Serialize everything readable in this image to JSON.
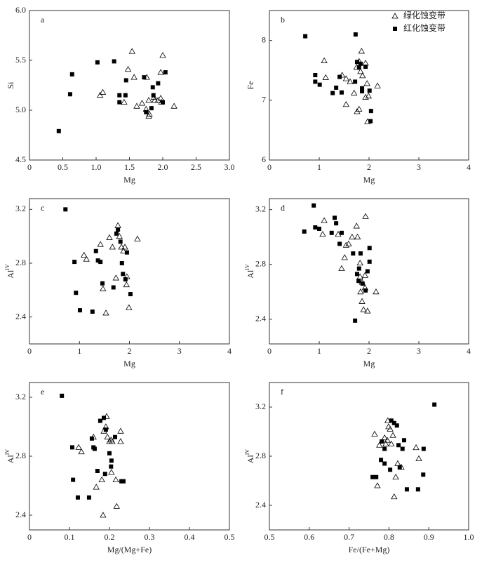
{
  "chart_data": [
    {
      "type": "scatter",
      "panel_label": "a",
      "xlabel": "Mg",
      "ylabel": "Si",
      "xlim": [
        0,
        3
      ],
      "ylim": [
        4.5,
        6.0
      ],
      "xticks": [
        0,
        0.5,
        {
          "value": 1,
          "label": "1.0"
        },
        1.5,
        {
          "value": 2,
          "label": "2.0"
        },
        2.5,
        {
          "value": 3,
          "label": "3.0"
        }
      ],
      "yticks": [
        4.5,
        {
          "value": 5,
          "label": "5.0"
        },
        5.5,
        {
          "value": 6,
          "label": "6.0"
        }
      ],
      "series": [
        {
          "marker": "triangle",
          "color": "#000000",
          "x": [
            1.54,
            2.0,
            1.48,
            1.97,
            1.1,
            1.06,
            1.57,
            1.76,
            1.42,
            1.61,
            1.69,
            1.75,
            1.8,
            1.79,
            1.87,
            1.93,
            1.88,
            1.97,
            2.17,
            1.98,
            1.79
          ],
          "values": [
            5.59,
            5.55,
            5.41,
            5.38,
            5.18,
            5.15,
            5.33,
            5.33,
            5.08,
            5.04,
            5.07,
            5.01,
            4.96,
            4.94,
            5.13,
            5.1,
            5.1,
            5.12,
            5.04,
            5.08,
            5.1
          ]
        },
        {
          "marker": "square",
          "color": "#000000",
          "x": [
            0.44,
            0.64,
            1.02,
            1.27,
            0.61,
            1.35,
            1.44,
            1.45,
            1.35,
            1.72,
            1.75,
            1.85,
            1.83,
            1.93,
            2.04,
            2.0,
            1.86
          ],
          "values": [
            4.79,
            5.36,
            5.48,
            5.49,
            5.16,
            5.15,
            5.15,
            5.3,
            5.08,
            5.33,
            4.98,
            5.23,
            5.02,
            5.27,
            5.38,
            5.08,
            5.15
          ]
        }
      ]
    },
    {
      "type": "scatter",
      "panel_label": "b",
      "xlabel": "Mg",
      "ylabel": "Fe",
      "xlim": [
        0,
        4
      ],
      "ylim": [
        6,
        8.5
      ],
      "xticks": [
        0,
        1,
        2,
        3,
        4
      ],
      "yticks": [
        6,
        7,
        8
      ],
      "legend": "upper right",
      "series": [
        {
          "name": "绿化蚀变带",
          "marker": "triangle",
          "color": "#000000",
          "x": [
            1.1,
            1.13,
            1.46,
            1.54,
            1.62,
            1.54,
            1.7,
            1.75,
            1.76,
            1.8,
            1.85,
            1.83,
            1.87,
            1.93,
            1.96,
            1.99,
            1.93,
            1.97,
            2.17,
            1.8
          ],
          "values": [
            7.66,
            7.38,
            7.42,
            7.36,
            7.31,
            6.93,
            7.12,
            7.55,
            6.81,
            6.85,
            7.82,
            7.48,
            7.41,
            7.62,
            7.28,
            7.07,
            7.05,
            6.64,
            7.24,
            7.65
          ]
        },
        {
          "name": "红化蚀变带",
          "marker": "square",
          "color": "#000000",
          "x": [
            0.72,
            1.73,
            0.92,
            0.92,
            1.01,
            1.27,
            1.34,
            1.41,
            1.45,
            1.72,
            1.76,
            1.83,
            1.86,
            1.86,
            1.93,
            2.01,
            2.04,
            2.03,
            1.8
          ],
          "values": [
            8.07,
            8.1,
            7.42,
            7.31,
            7.26,
            7.12,
            7.21,
            7.39,
            7.13,
            7.31,
            7.64,
            7.61,
            7.2,
            7.15,
            7.56,
            7.16,
            6.82,
            6.65,
            7.55
          ]
        }
      ]
    },
    {
      "type": "scatter",
      "panel_label": "c",
      "xlabel": "Mg",
      "ylabel": "Al",
      "ylabel_superscript": "IV",
      "xlim": [
        0,
        4
      ],
      "ylim": [
        2.2,
        3.28
      ],
      "xticks": [
        0,
        1,
        2,
        3,
        4
      ],
      "yticks": [
        2.4,
        2.8,
        3.2
      ],
      "series": [
        {
          "marker": "triangle",
          "color": "#000000",
          "x": [
            1.09,
            1.14,
            1.42,
            1.47,
            1.53,
            1.6,
            1.66,
            1.73,
            1.77,
            1.8,
            1.84,
            1.88,
            1.91,
            1.94,
            1.99,
            2.16,
            1.95
          ],
          "values": [
            2.86,
            2.83,
            2.94,
            2.61,
            2.43,
            2.99,
            2.92,
            2.69,
            3.08,
            3.0,
            2.92,
            2.89,
            2.92,
            2.64,
            2.47,
            2.98,
            2.7
          ]
        },
        {
          "marker": "square",
          "color": "#000000",
          "x": [
            0.72,
            0.9,
            0.93,
            1.01,
            1.26,
            1.33,
            1.37,
            1.42,
            1.46,
            1.68,
            1.74,
            1.77,
            1.82,
            1.87,
            1.85,
            1.92,
            1.95,
            2.02
          ],
          "values": [
            3.2,
            2.81,
            2.58,
            2.45,
            2.44,
            2.89,
            2.82,
            2.81,
            2.65,
            2.62,
            3.02,
            3.05,
            2.96,
            2.72,
            2.8,
            2.68,
            2.88,
            2.57
          ]
        }
      ]
    },
    {
      "type": "scatter",
      "panel_label": "d",
      "xlabel": "Mg",
      "ylabel": "Al",
      "ylabel_superscript": "IV",
      "xlim": [
        0,
        4
      ],
      "ylim": [
        2.22,
        3.28
      ],
      "xticks": [
        0,
        1,
        2,
        3,
        4
      ],
      "yticks": [
        2.4,
        2.8,
        3.2
      ],
      "series": [
        {
          "marker": "triangle",
          "color": "#000000",
          "x": [
            1.07,
            1.1,
            1.38,
            1.45,
            1.51,
            1.54,
            1.59,
            1.66,
            1.75,
            1.77,
            1.82,
            1.82,
            1.83,
            1.86,
            1.89,
            1.92,
            1.92,
            1.93,
            1.97,
            2.14,
            1.86
          ],
          "values": [
            3.02,
            3.12,
            3.02,
            2.77,
            2.85,
            2.94,
            2.95,
            3.0,
            3.08,
            3.0,
            2.81,
            2.71,
            2.6,
            2.53,
            2.47,
            2.63,
            2.72,
            3.15,
            2.46,
            2.6,
            2.67
          ]
        },
        {
          "marker": "square",
          "color": "#000000",
          "x": [
            0.7,
            0.89,
            0.92,
            1.0,
            1.25,
            1.31,
            1.34,
            1.41,
            1.45,
            1.68,
            1.72,
            1.76,
            1.8,
            1.83,
            1.87,
            1.93,
            1.97,
            2.01,
            2.01,
            1.79
          ],
          "values": [
            3.04,
            3.23,
            3.07,
            3.06,
            3.03,
            3.14,
            3.1,
            2.95,
            3.03,
            2.88,
            2.39,
            2.73,
            2.77,
            2.88,
            2.66,
            2.61,
            2.75,
            2.82,
            2.92,
            2.68
          ]
        }
      ]
    },
    {
      "type": "scatter",
      "panel_label": "e",
      "xlabel": "Mg/(Mg+Fe)",
      "ylabel": "Al",
      "ylabel_superscript": "IV",
      "xlim": [
        0,
        0.5
      ],
      "ylim": [
        2.3,
        3.3
      ],
      "xticks": [
        0,
        0.1,
        0.2,
        0.3,
        0.4,
        0.5
      ],
      "yticks": [
        2.4,
        2.8,
        3.2
      ],
      "series": [
        {
          "marker": "triangle",
          "color": "#000000",
          "x": [
            0.123,
            0.13,
            0.16,
            0.167,
            0.181,
            0.184,
            0.186,
            0.191,
            0.193,
            0.195,
            0.2,
            0.204,
            0.205,
            0.207,
            0.218,
            0.228,
            0.228,
            0.216
          ],
          "values": [
            2.86,
            2.83,
            2.93,
            2.59,
            2.64,
            2.4,
            2.97,
            3.0,
            3.07,
            2.93,
            2.9,
            2.91,
            2.69,
            2.9,
            2.46,
            2.97,
            2.9,
            2.64
          ]
        },
        {
          "marker": "square",
          "color": "#000000",
          "x": [
            0.081,
            0.107,
            0.109,
            0.121,
            0.149,
            0.156,
            0.16,
            0.163,
            0.17,
            0.177,
            0.186,
            0.189,
            0.191,
            0.2,
            0.204,
            0.205,
            0.214,
            0.23,
            0.235
          ],
          "values": [
            3.21,
            2.86,
            2.64,
            2.52,
            2.52,
            2.92,
            2.86,
            2.85,
            2.7,
            3.04,
            3.06,
            2.68,
            2.98,
            2.82,
            2.73,
            2.77,
            2.93,
            2.63,
            2.63
          ]
        }
      ]
    },
    {
      "type": "scatter",
      "panel_label": "f",
      "xlabel": "Fe/(Fe+Mg)",
      "ylabel": "Al",
      "ylabel_superscript": "IV",
      "xlim": [
        0.5,
        1.0
      ],
      "ylim": [
        2.2,
        3.4
      ],
      "xticks": [
        0.5,
        0.6,
        0.7,
        0.8,
        0.9,
        {
          "value": 1,
          "label": "1.0"
        }
      ],
      "yticks": [
        2.4,
        2.8,
        3.2
      ],
      "series": [
        {
          "marker": "triangle",
          "color": "#000000",
          "x": [
            0.764,
            0.771,
            0.776,
            0.789,
            0.792,
            0.796,
            0.797,
            0.799,
            0.803,
            0.81,
            0.813,
            0.817,
            0.822,
            0.831,
            0.868,
            0.875,
            0.806
          ],
          "values": [
            2.98,
            2.56,
            2.89,
            2.95,
            2.9,
            2.93,
            3.09,
            3.04,
            3.02,
            2.97,
            2.47,
            2.63,
            2.74,
            2.71,
            2.87,
            2.78,
            2.9
          ]
        },
        {
          "marker": "square",
          "color": "#000000",
          "x": [
            0.759,
            0.768,
            0.78,
            0.789,
            0.782,
            0.789,
            0.803,
            0.806,
            0.813,
            0.82,
            0.824,
            0.827,
            0.834,
            0.838,
            0.845,
            0.873,
            0.886,
            0.887,
            0.914
          ],
          "values": [
            2.63,
            2.63,
            2.77,
            2.74,
            2.92,
            2.86,
            2.69,
            3.09,
            3.07,
            3.05,
            2.89,
            2.71,
            2.86,
            2.93,
            2.53,
            2.53,
            2.65,
            2.86,
            3.22
          ]
        }
      ]
    }
  ]
}
